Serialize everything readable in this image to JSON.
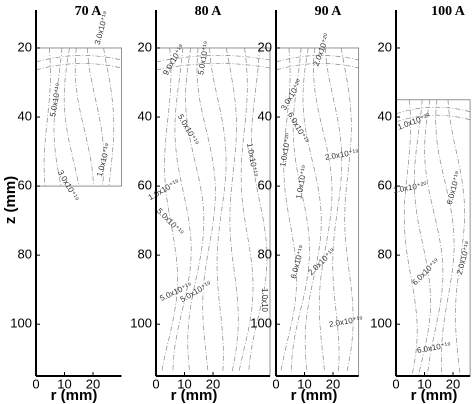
{
  "chart_data": [
    {
      "type": "contour",
      "title": "70 A",
      "x_label": "r (mm)",
      "y_label": "z (mm)",
      "xlim": [
        0,
        31
      ],
      "ylim": [
        9,
        115
      ],
      "xticks": [
        0,
        10,
        20
      ],
      "yticks": [
        20,
        40,
        60,
        80,
        100
      ],
      "domain_r": [
        0,
        30
      ],
      "domain_z": [
        20,
        60
      ],
      "contour_labels": [
        "3.0x10⁺¹⁹",
        "5.0x10⁺¹⁹",
        "1.0x10⁺¹⁹",
        "3.0x10⁺¹⁹"
      ]
    },
    {
      "type": "contour",
      "title": "80 A",
      "x_label": "r (mm)",
      "xlim": [
        0,
        41
      ],
      "ylim": [
        9,
        115
      ],
      "xticks": [
        0,
        10,
        20
      ],
      "yticks": [
        20,
        40,
        60,
        80,
        100
      ],
      "domain_r": [
        0,
        40
      ],
      "domain_z": [
        20,
        115
      ],
      "contour_labels": [
        "9.0x10⁺¹⁹",
        "5.0x10⁺¹⁹",
        "5.0x10⁺¹⁹",
        "1.0x10⁺¹⁹",
        "1.0x10⁺¹⁹",
        "5.0x10⁺¹⁹",
        "5.0x10⁺¹⁹",
        "5.0x10⁺¹⁹",
        "1.0x10"
      ]
    },
    {
      "type": "contour",
      "title": "90 A",
      "x_label": "r (mm)",
      "xlim": [
        0,
        29
      ],
      "ylim": [
        9,
        115
      ],
      "xticks": [
        0,
        10,
        20
      ],
      "yticks": [
        20,
        40,
        60,
        80,
        100
      ],
      "domain_r": [
        0,
        29
      ],
      "domain_z": [
        20,
        115
      ],
      "contour_labels": [
        "2.0x10⁺²⁰",
        "3.0x10⁺²⁰",
        "6.0x10⁺¹⁹",
        "1.0x10⁺²⁰",
        "2.0x10⁺¹⁹",
        "1.0x10⁺¹⁹",
        "6.0x10⁺¹⁹",
        "2.0x10⁺¹⁹",
        "2.0x10⁺¹⁹"
      ]
    },
    {
      "type": "contour",
      "title": "100 A",
      "x_label": "r (mm)",
      "xlim": [
        0,
        26
      ],
      "ylim": [
        9,
        115
      ],
      "xticks": [
        0,
        10,
        20
      ],
      "yticks": [
        20,
        40,
        60,
        80,
        100
      ],
      "domain_r": [
        0,
        26
      ],
      "domain_z": [
        35,
        115
      ],
      "contour_labels": [
        "1.0x10⁺²⁰",
        "6.0x10⁺¹⁹",
        "1.0x10⁺²⁰",
        "6.0x10⁺¹⁹",
        "2.0x10⁺¹⁹",
        "6.0x10⁺¹⁹"
      ]
    }
  ]
}
